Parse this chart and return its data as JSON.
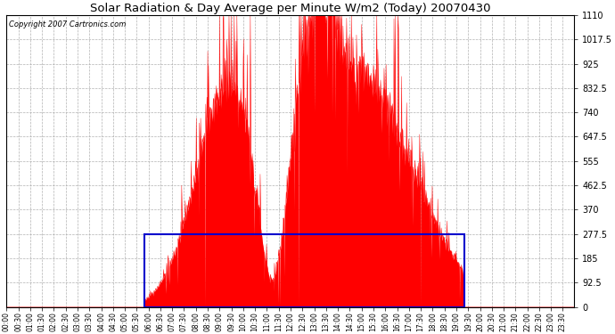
{
  "title": "Solar Radiation & Day Average per Minute W/m2 (Today) 20070430",
  "copyright": "Copyright 2007 Cartronics.com",
  "background_color": "#ffffff",
  "plot_bg_color": "#ffffff",
  "grid_color": "#aaaaaa",
  "fill_color": "#ff0000",
  "line_color": "#ff0000",
  "box_color": "#0000cc",
  "ylim": [
    0.0,
    1110.0
  ],
  "yticks": [
    0.0,
    92.5,
    185.0,
    277.5,
    370.0,
    462.5,
    555.0,
    647.5,
    740.0,
    832.5,
    925.0,
    1017.5,
    1110.0
  ],
  "day_avg_value": 277.5,
  "sunrise_minute": 350,
  "sunset_minute": 1160,
  "total_minutes": 1440
}
